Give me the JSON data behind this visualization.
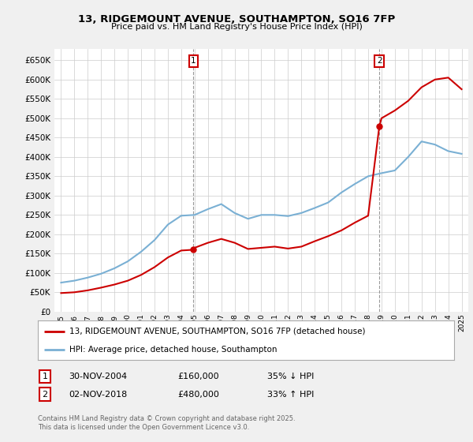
{
  "title": "13, RIDGEMOUNT AVENUE, SOUTHAMPTON, SO16 7FP",
  "subtitle": "Price paid vs. HM Land Registry's House Price Index (HPI)",
  "bg_color": "#f0f0f0",
  "plot_bg_color": "#ffffff",
  "ylim": [
    0,
    680000
  ],
  "yticks": [
    0,
    50000,
    100000,
    150000,
    200000,
    250000,
    300000,
    350000,
    400000,
    450000,
    500000,
    550000,
    600000,
    650000
  ],
  "xlim_start": 1994.5,
  "xlim_end": 2025.5,
  "xticks": [
    1995,
    1996,
    1997,
    1998,
    1999,
    2000,
    2001,
    2002,
    2003,
    2004,
    2005,
    2006,
    2007,
    2008,
    2009,
    2010,
    2011,
    2012,
    2013,
    2014,
    2015,
    2016,
    2017,
    2018,
    2019,
    2020,
    2021,
    2022,
    2023,
    2024,
    2025
  ],
  "property_color": "#cc0000",
  "hpi_color": "#7ab0d4",
  "marker1_x": 2004.92,
  "marker1_y": 160000,
  "marker2_x": 2018.84,
  "marker2_y": 480000,
  "legend_label1": "13, RIDGEMOUNT AVENUE, SOUTHAMPTON, SO16 7FP (detached house)",
  "legend_label2": "HPI: Average price, detached house, Southampton",
  "table_row1": [
    "1",
    "30-NOV-2004",
    "£160,000",
    "35% ↓ HPI"
  ],
  "table_row2": [
    "2",
    "02-NOV-2018",
    "£480,000",
    "33% ↑ HPI"
  ],
  "footnote": "Contains HM Land Registry data © Crown copyright and database right 2025.\nThis data is licensed under the Open Government Licence v3.0.",
  "property_years": [
    1995.0,
    1996.0,
    1997.0,
    1998.0,
    1999.0,
    2000.0,
    2001.0,
    2002.0,
    2003.0,
    2004.0,
    2004.92,
    2005.0,
    2006.0,
    2007.0,
    2008.0,
    2009.0,
    2010.0,
    2011.0,
    2012.0,
    2013.0,
    2014.0,
    2015.0,
    2016.0,
    2017.0,
    2018.0,
    2018.84,
    2019.0,
    2020.0,
    2021.0,
    2022.0,
    2023.0,
    2024.0,
    2025.0
  ],
  "property_values": [
    48000,
    50000,
    55000,
    62000,
    70000,
    80000,
    95000,
    115000,
    140000,
    158000,
    160000,
    165000,
    178000,
    188000,
    178000,
    162000,
    165000,
    168000,
    163000,
    168000,
    182000,
    195000,
    210000,
    230000,
    248000,
    480000,
    500000,
    520000,
    545000,
    580000,
    600000,
    605000,
    575000
  ],
  "hpi_years": [
    1995.0,
    1996.0,
    1997.0,
    1998.0,
    1999.0,
    2000.0,
    2001.0,
    2002.0,
    2003.0,
    2004.0,
    2005.0,
    2006.0,
    2007.0,
    2008.0,
    2009.0,
    2010.0,
    2011.0,
    2012.0,
    2013.0,
    2014.0,
    2015.0,
    2016.0,
    2017.0,
    2018.0,
    2019.0,
    2020.0,
    2021.0,
    2022.0,
    2023.0,
    2024.0,
    2025.0
  ],
  "hpi_values": [
    75000,
    80000,
    88000,
    98000,
    112000,
    130000,
    155000,
    185000,
    225000,
    248000,
    250000,
    265000,
    278000,
    255000,
    240000,
    250000,
    250000,
    247000,
    255000,
    268000,
    282000,
    308000,
    330000,
    350000,
    358000,
    365000,
    400000,
    440000,
    432000,
    415000,
    408000
  ]
}
